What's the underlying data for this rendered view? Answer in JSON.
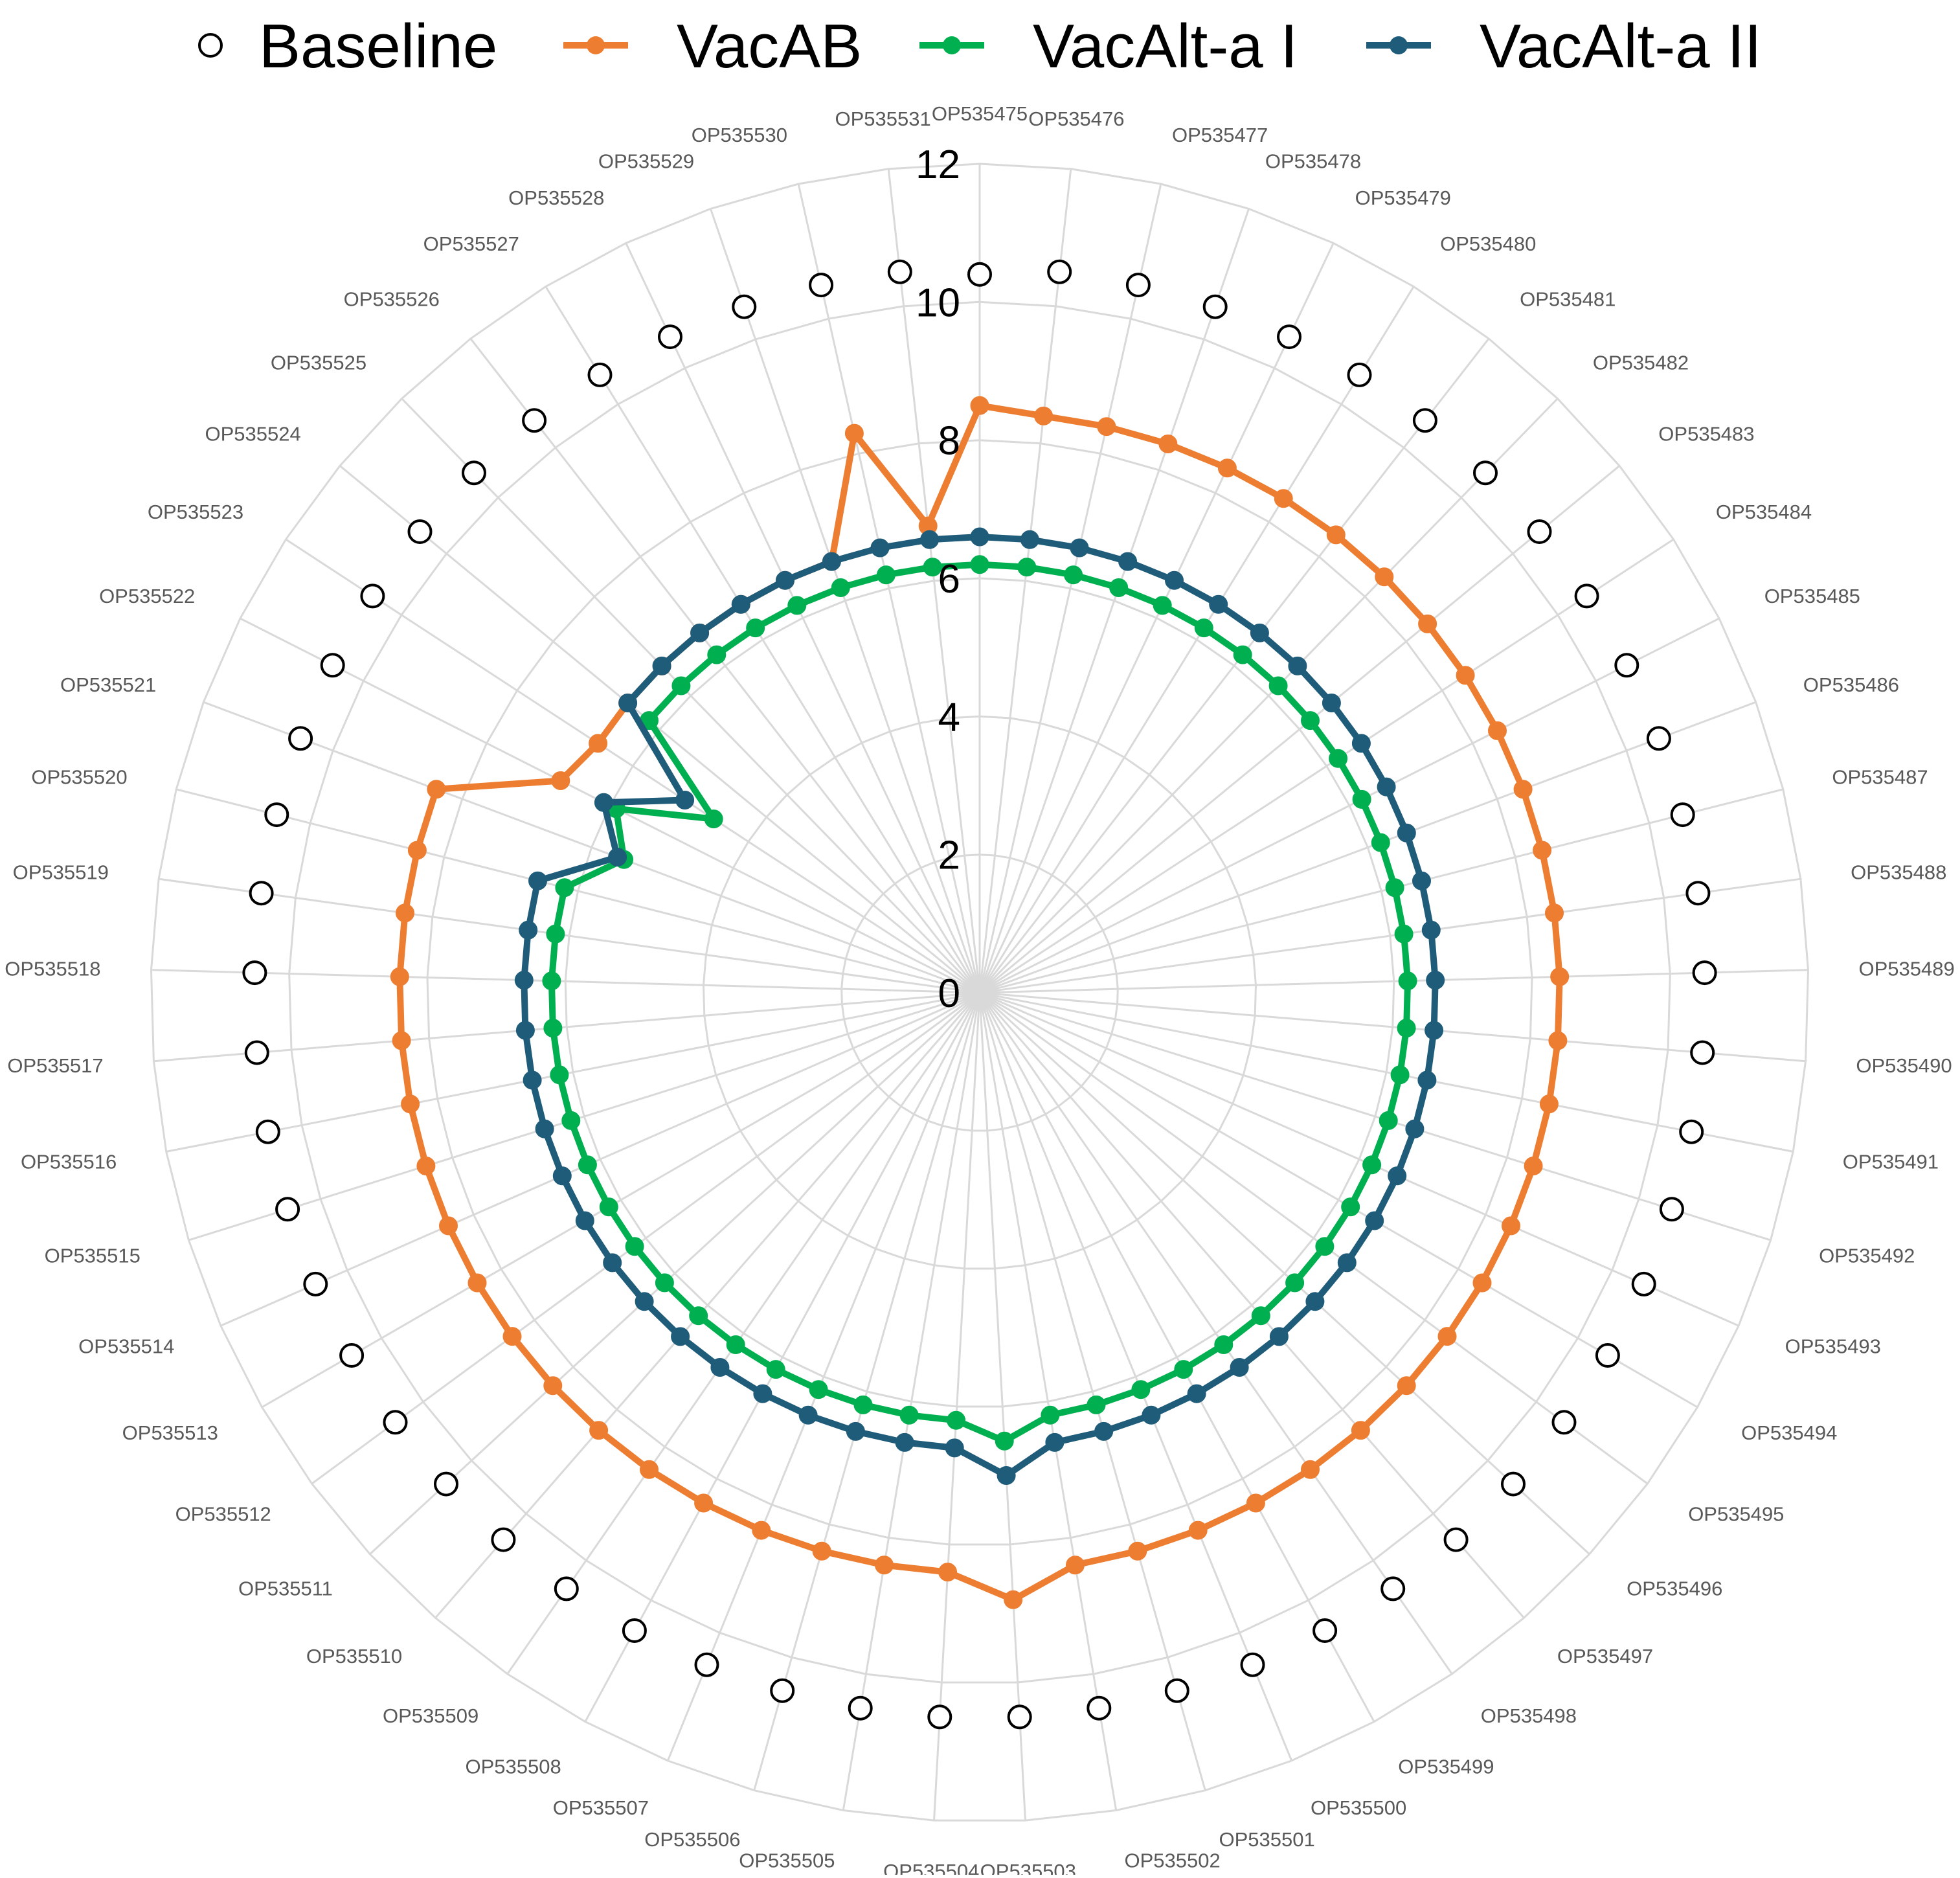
{
  "chart_data": {
    "type": "radar",
    "title": "",
    "categories": [
      "OP535475",
      "OP535476",
      "OP535477",
      "OP535478",
      "OP535479",
      "OP535480",
      "OP535481",
      "OP535482",
      "OP535483",
      "OP535484",
      "OP535485",
      "OP535486",
      "OP535487",
      "OP535488",
      "OP535489",
      "OP535490",
      "OP535491",
      "OP535492",
      "OP535493",
      "OP535494",
      "OP535495",
      "OP535496",
      "OP535497",
      "OP535498",
      "OP535499",
      "OP535500",
      "OP535501",
      "OP535502",
      "OP535503",
      "OP535504",
      "OP535505",
      "OP535506",
      "OP535507",
      "OP535508",
      "OP535509",
      "OP535510",
      "OP535511",
      "OP535512",
      "OP535513",
      "OP535514",
      "OP535515",
      "OP535516",
      "OP535517",
      "OP535518",
      "OP535519",
      "OP535520",
      "OP535521",
      "OP535522",
      "OP535523",
      "OP535524",
      "OP535525",
      "OP535526",
      "OP535527",
      "OP535528",
      "OP535529",
      "OP535530",
      "OP535531"
    ],
    "rlim": [
      0,
      12
    ],
    "rticks": [
      "0",
      "2",
      "4",
      "6",
      "8",
      "10",
      "12"
    ],
    "legend_position": "top",
    "series": [
      {
        "name": "Baseline",
        "color": "#000000",
        "marker": "hollow-circle",
        "line": false,
        "values": [
          10.4,
          10.5,
          10.5,
          10.5,
          10.5,
          10.5,
          10.5,
          10.5,
          10.5,
          10.5,
          10.5,
          10.5,
          10.5,
          10.5,
          10.5,
          10.5,
          10.5,
          10.5,
          10.5,
          10.5,
          10.5,
          10.5,
          10.5,
          10.5,
          10.5,
          10.5,
          10.5,
          10.5,
          10.5,
          10.5,
          10.5,
          10.5,
          10.5,
          10.5,
          10.5,
          10.5,
          10.5,
          10.5,
          10.5,
          10.5,
          10.5,
          10.5,
          10.5,
          10.5,
          10.5,
          10.5,
          10.5,
          10.5,
          10.5,
          10.5,
          10.5,
          10.5,
          10.5,
          10.5,
          10.5,
          10.5,
          10.5
        ]
      },
      {
        "name": "VacAB",
        "color": "#ed7d31",
        "marker": "filled-circle",
        "line": true,
        "values": [
          8.5,
          8.4,
          8.4,
          8.4,
          8.4,
          8.4,
          8.4,
          8.4,
          8.4,
          8.4,
          8.4,
          8.4,
          8.4,
          8.4,
          8.4,
          8.4,
          8.4,
          8.4,
          8.4,
          8.4,
          8.4,
          8.4,
          8.4,
          8.4,
          8.4,
          8.4,
          8.4,
          8.4,
          8.8,
          8.4,
          8.4,
          8.4,
          8.4,
          8.4,
          8.4,
          8.4,
          8.4,
          8.4,
          8.4,
          8.4,
          8.4,
          8.4,
          8.4,
          8.4,
          8.4,
          8.4,
          8.4,
          6.8,
          6.6,
          6.6,
          6.6,
          6.6,
          6.6,
          6.6,
          6.6,
          8.3,
          6.8
        ]
      },
      {
        "name": "VacAlt-a I",
        "color": "#00b050",
        "marker": "filled-circle",
        "line": true,
        "values": [
          6.2,
          6.2,
          6.2,
          6.2,
          6.2,
          6.2,
          6.2,
          6.2,
          6.2,
          6.2,
          6.2,
          6.2,
          6.2,
          6.2,
          6.2,
          6.2,
          6.2,
          6.2,
          6.2,
          6.2,
          6.2,
          6.2,
          6.2,
          6.2,
          6.2,
          6.2,
          6.2,
          6.2,
          6.5,
          6.2,
          6.2,
          6.2,
          6.2,
          6.2,
          6.2,
          6.2,
          6.2,
          6.2,
          6.2,
          6.2,
          6.2,
          6.2,
          6.2,
          6.2,
          6.2,
          6.2,
          5.5,
          5.9,
          4.6,
          6.2,
          6.2,
          6.2,
          6.2,
          6.2,
          6.2,
          6.2,
          6.2
        ]
      },
      {
        "name": "VacAlt-a II",
        "color": "#1f5c7a",
        "marker": "filled-circle",
        "line": true,
        "values": [
          6.6,
          6.6,
          6.6,
          6.6,
          6.6,
          6.6,
          6.6,
          6.6,
          6.6,
          6.6,
          6.6,
          6.6,
          6.6,
          6.6,
          6.6,
          6.6,
          6.6,
          6.6,
          6.6,
          6.6,
          6.6,
          6.6,
          6.6,
          6.6,
          6.6,
          6.6,
          6.6,
          6.6,
          7.0,
          6.6,
          6.6,
          6.6,
          6.6,
          6.6,
          6.6,
          6.6,
          6.6,
          6.6,
          6.6,
          6.6,
          6.6,
          6.6,
          6.6,
          6.6,
          6.6,
          6.6,
          5.6,
          6.1,
          5.1,
          6.6,
          6.6,
          6.6,
          6.6,
          6.6,
          6.6,
          6.6,
          6.6
        ]
      }
    ]
  }
}
